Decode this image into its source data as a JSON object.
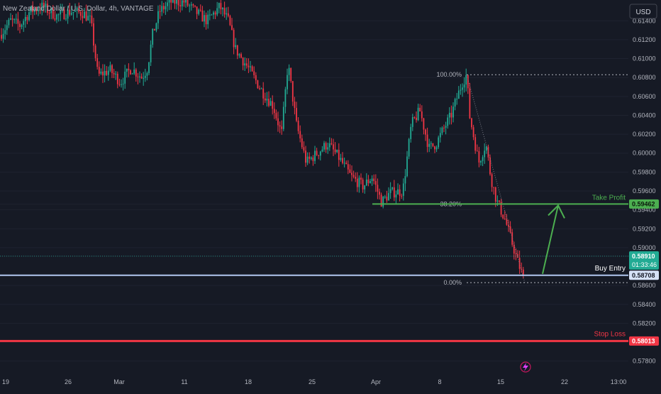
{
  "header": {
    "symbol_title": "New Zealand Dollar / U.S. Dollar, 4h, VANTAGE",
    "currency_button": "USD"
  },
  "colors": {
    "background": "#161a25",
    "up": "#22ab94",
    "down": "#f23645",
    "take_profit": "#4caf50",
    "entry": "#b2c8f0",
    "stop": "#f23645",
    "axis_text": "#b2b5be"
  },
  "chart_data": {
    "type": "candlestick",
    "ylim": [
      0.577,
      0.6162
    ],
    "y_ticks": [
      0.578,
      0.58013,
      0.582,
      0.584,
      0.586,
      0.58708,
      0.5891,
      0.59,
      0.592,
      0.594,
      0.59462,
      0.596,
      0.598,
      0.6,
      0.602,
      0.604,
      0.606,
      0.608,
      0.61,
      0.612,
      0.614
    ],
    "x_tick_labels": [
      "19",
      "26",
      "Mar",
      "11",
      "18",
      "25",
      "Apr",
      "8",
      "15",
      "22",
      "13:00"
    ],
    "candles": [],
    "levels": {
      "take_profit": {
        "label": "Take Profit",
        "price": 0.59462,
        "price_label": "0.59462"
      },
      "buy_entry": {
        "label": "Buy Entry",
        "price": 0.58708,
        "price_label": "0.58708"
      },
      "stop_loss": {
        "label": "Stop Loss",
        "price": 0.58013,
        "price_label": "0.58013"
      },
      "current": {
        "price": 0.5891,
        "price_label": "0.58910",
        "countdown": "01:33:46"
      }
    },
    "fibonacci": [
      {
        "label": "100.00%",
        "price": 0.6083
      },
      {
        "label": "38.20%",
        "price": 0.59462
      },
      {
        "label": "0.00%",
        "price": 0.5863
      }
    ]
  }
}
